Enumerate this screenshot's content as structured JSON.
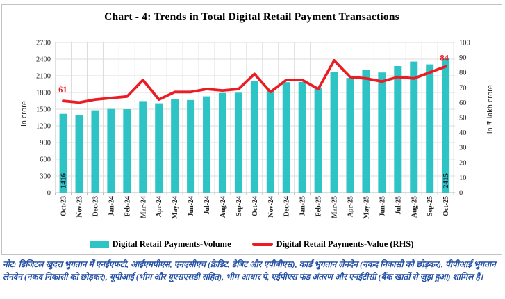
{
  "title": "Chart - 4: Trends in Total Digital Retail Payment Transactions",
  "note": "नोट: डिजिटल खुदरा भुगतान में एनईएफटी, आईएमपीएस, एनएसीएच (क्रेडिट, डेबिट और एपीबीएस), कार्ड भुगतान लेनदेन (नकद निकासी को छोड़कर), पीपीआई भुगतान लेनदेन (नकद निकासी को छोड़कर), यूपीआई (भीम और यूएसएसडी सहित), भीम आधार पे, एईपीएस फंड अंतरण और एनईटीसी (बैंक खातों से जुड़ा हुआ) शामिल हैं।",
  "colors": {
    "bar": "#2EC4C6",
    "line": "#EC1C24",
    "grid": "#DCDCDC",
    "axis": "#B7B7B7",
    "tick_text": "#262626",
    "bar_label": "#1B2433",
    "note_text": "#2350A5",
    "border": "#C3C3C3",
    "title": "#000000"
  },
  "chart_data": {
    "type": "bar",
    "subtype": "bar+line combo, dual axis",
    "grid": true,
    "legend_position": "bottom",
    "categories": [
      "Oct-23",
      "Nov-23",
      "Dec-23",
      "Jan-24",
      "Feb-24",
      "Mar-24",
      "Apr-24",
      "May-24",
      "Jun-24",
      "Jul-24",
      "Aug-24",
      "Sep-24",
      "Oct-24",
      "Nov-24",
      "Dec-24",
      "Jan-25",
      "Feb-25",
      "Mar-25",
      "Apr-25",
      "May-25",
      "Jun-25",
      "Jul-25",
      "Aug-25",
      "Sep-25",
      "Oct-25"
    ],
    "series": [
      {
        "name": "Digital Retail Payments-Volume",
        "type": "bar",
        "axis": "left",
        "color": "#2EC4C6",
        "values": [
          1416,
          1400,
          1480,
          1505,
          1500,
          1645,
          1605,
          1685,
          1665,
          1730,
          1790,
          1795,
          2010,
          1835,
          1985,
          1990,
          1890,
          2165,
          2060,
          2200,
          2160,
          2275,
          2355,
          2305,
          2415
        ]
      },
      {
        "name": "Digital Retail Payments-Value (RHS)",
        "type": "line",
        "axis": "right",
        "color": "#EC1C24",
        "values": [
          61,
          60,
          62,
          63,
          64,
          75,
          62,
          67,
          67,
          69,
          68,
          69,
          79,
          67,
          75,
          75,
          69,
          88,
          77,
          76,
          74,
          77,
          76,
          80,
          84
        ]
      }
    ],
    "left_axis": {
      "label": "in crore",
      "min": 0,
      "max": 2700,
      "step": 300,
      "ticks": [
        "0",
        "300",
        "600",
        "900",
        "1200",
        "1500",
        "1800",
        "2100",
        "2400",
        "2700"
      ]
    },
    "right_axis": {
      "label": "in ₹ lakh crore",
      "min": 0,
      "max": 100,
      "step": 10,
      "ticks": [
        "0",
        "10",
        "20",
        "30",
        "40",
        "50",
        "60",
        "70",
        "80",
        "90",
        "100"
      ]
    },
    "annotations": {
      "first_bar_value": "1416",
      "last_bar_value": "2415",
      "line_first_value": "61",
      "line_last_value": "84"
    }
  }
}
